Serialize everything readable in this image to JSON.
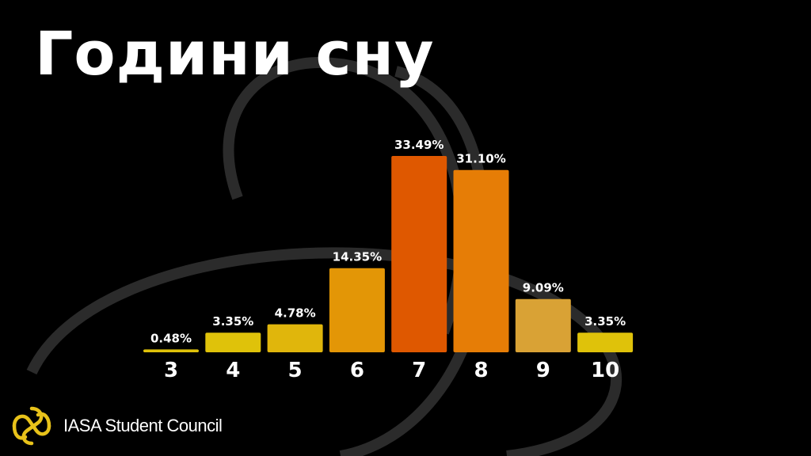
{
  "title": "Години сну",
  "brand": {
    "name": "IASA Student Council",
    "logo_icon": "iasa-logo-icon",
    "logo_color": "#e8c21a"
  },
  "chart_data": {
    "type": "bar",
    "categories": [
      "3",
      "4",
      "5",
      "6",
      "7",
      "8",
      "9",
      "10"
    ],
    "values": [
      0.48,
      3.35,
      4.78,
      14.35,
      33.49,
      31.1,
      9.09,
      3.35
    ],
    "value_labels": [
      "0.48%",
      "3.35%",
      "4.78%",
      "14.35%",
      "33.49%",
      "31.10%",
      "9.09%",
      "3.35%"
    ],
    "colors": [
      "#dfc20a",
      "#dfc20a",
      "#e0b60c",
      "#e39606",
      "#df5800",
      "#e67d06",
      "#d9a235",
      "#dfc20a"
    ],
    "ylim": [
      0,
      33.49
    ],
    "grid": false,
    "legend": "none"
  }
}
